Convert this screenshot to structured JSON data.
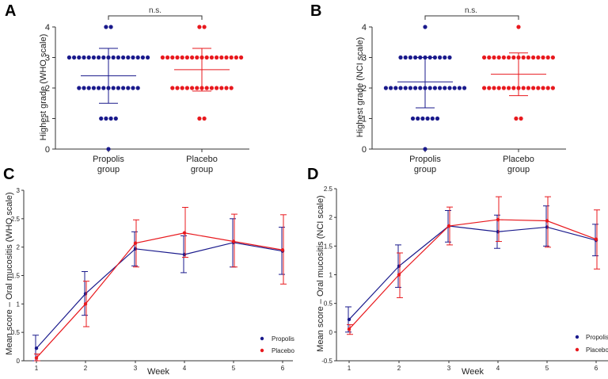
{
  "colors": {
    "propolis": "#1a1a8c",
    "placebo": "#e8191e"
  },
  "chart_data": [
    {
      "panel": "A",
      "type": "scatter",
      "ylabel": "Highest grade (WHO scale)",
      "ylim": [
        0,
        4
      ],
      "yticks": [
        "0",
        "1",
        "2",
        "3",
        "4"
      ],
      "groups": [
        {
          "key": "propolis",
          "label_lines": [
            "Propolis",
            "group"
          ],
          "mean": 2.4,
          "sd_low": 1.5,
          "sd_high": 3.3,
          "counts": [
            {
              "y": 4,
              "n": 2
            },
            {
              "y": 3,
              "n": 17
            },
            {
              "y": 2,
              "n": 13
            },
            {
              "y": 1,
              "n": 4
            },
            {
              "y": 0,
              "n": 1
            }
          ]
        },
        {
          "key": "placebo",
          "label_lines": [
            "Placebo",
            "group"
          ],
          "mean": 2.6,
          "sd_low": 1.9,
          "sd_high": 3.3,
          "counts": [
            {
              "y": 4,
              "n": 2
            },
            {
              "y": 3,
              "n": 17
            },
            {
              "y": 2,
              "n": 13
            },
            {
              "y": 1,
              "n": 2
            }
          ]
        }
      ],
      "significance": "n.s."
    },
    {
      "panel": "B",
      "type": "scatter",
      "ylabel": "Highest grade (NCI scale)",
      "ylim": [
        0,
        4
      ],
      "yticks": [
        "0",
        "1",
        "2",
        "3",
        "4"
      ],
      "groups": [
        {
          "key": "propolis",
          "label_lines": [
            "Propolis",
            "group"
          ],
          "mean": 2.2,
          "sd_low": 1.35,
          "sd_high": 3.0,
          "counts": [
            {
              "y": 4,
              "n": 1
            },
            {
              "y": 3,
              "n": 11
            },
            {
              "y": 2,
              "n": 17
            },
            {
              "y": 1,
              "n": 6
            },
            {
              "y": 0,
              "n": 1
            }
          ]
        },
        {
          "key": "placebo",
          "label_lines": [
            "Placebo",
            "group"
          ],
          "mean": 2.45,
          "sd_low": 1.75,
          "sd_high": 3.15,
          "counts": [
            {
              "y": 4,
              "n": 1
            },
            {
              "y": 3,
              "n": 15
            },
            {
              "y": 2,
              "n": 15
            },
            {
              "y": 1,
              "n": 2
            }
          ]
        }
      ],
      "significance": "n.s."
    },
    {
      "panel": "C",
      "type": "line",
      "xlabel": "Week",
      "ylabel": "Mean score – Oral mucositis (WHO scale)",
      "x": [
        1,
        2,
        3,
        4,
        5,
        6
      ],
      "xticks": [
        "1",
        "2",
        "3",
        "4",
        "5",
        "6"
      ],
      "ylim": [
        0,
        3
      ],
      "yticks": [
        "0",
        "0.5",
        "1",
        "1.5",
        "2",
        "2.5",
        "3"
      ],
      "series": [
        {
          "key": "propolis",
          "name": "Propolis",
          "values": [
            0.22,
            1.18,
            1.97,
            1.87,
            2.08,
            1.93
          ],
          "err_low": [
            0.0,
            0.8,
            1.67,
            1.55,
            1.65,
            1.52
          ],
          "err_high": [
            0.45,
            1.57,
            2.27,
            2.2,
            2.5,
            2.35
          ]
        },
        {
          "key": "placebo",
          "name": "Placebo",
          "values": [
            0.05,
            1.0,
            2.07,
            2.25,
            2.1,
            1.95
          ],
          "err_low": [
            0.0,
            0.6,
            1.65,
            1.82,
            1.65,
            1.35
          ],
          "err_high": [
            0.12,
            1.4,
            2.48,
            2.7,
            2.58,
            2.57
          ]
        }
      ],
      "legend": "bottom-right"
    },
    {
      "panel": "D",
      "type": "line",
      "xlabel": "Week",
      "ylabel": "Mean score – Oral mucositis (NCI scale)",
      "x": [
        1,
        2,
        3,
        4,
        5,
        6
      ],
      "xticks": [
        "1",
        "2",
        "3",
        "4",
        "5",
        "6"
      ],
      "ylim": [
        -0.5,
        2.5
      ],
      "yticks": [
        "-0.5",
        "0",
        "0.5",
        "1",
        "1.5",
        "2",
        "2.5"
      ],
      "series": [
        {
          "key": "propolis",
          "name": "Propolis",
          "values": [
            0.22,
            1.15,
            1.85,
            1.75,
            1.83,
            1.6
          ],
          "err_low": [
            0.0,
            0.78,
            1.57,
            1.46,
            1.5,
            1.33
          ],
          "err_high": [
            0.44,
            1.52,
            2.12,
            2.04,
            2.2,
            1.88
          ]
        },
        {
          "key": "placebo",
          "name": "Placebo",
          "values": [
            0.05,
            1.0,
            1.85,
            1.96,
            1.94,
            1.62
          ],
          "err_low": [
            -0.04,
            0.6,
            1.52,
            1.58,
            1.48,
            1.1
          ],
          "err_high": [
            0.13,
            1.38,
            2.18,
            2.36,
            2.36,
            2.13
          ]
        }
      ],
      "legend": "bottom-right"
    }
  ]
}
